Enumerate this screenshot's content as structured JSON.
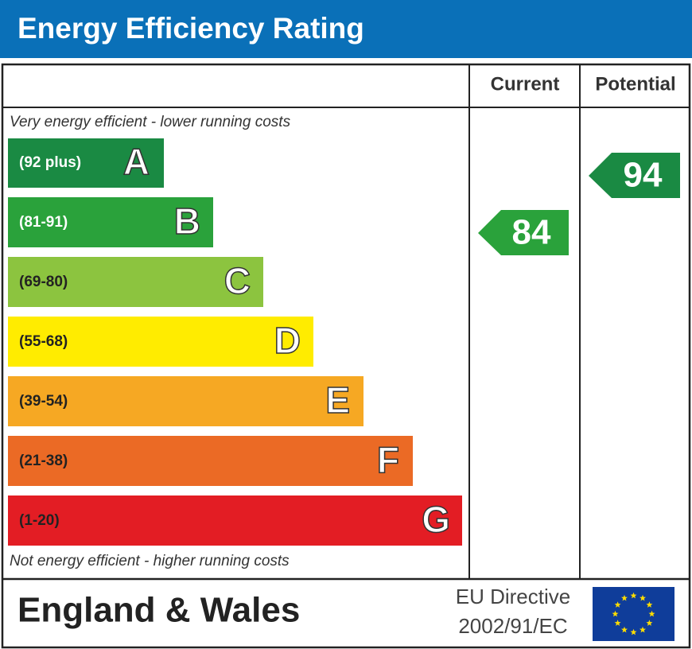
{
  "title": "Energy Efficiency Rating",
  "columns": {
    "current": "Current",
    "potential": "Potential"
  },
  "top_note": "Very energy efficient - lower running costs",
  "bottom_note": "Not energy efficient - higher running costs",
  "bands": [
    {
      "range": "(92 plus)",
      "letter": "A"
    },
    {
      "range": "(81-91)",
      "letter": "B"
    },
    {
      "range": "(69-80)",
      "letter": "C"
    },
    {
      "range": "(55-68)",
      "letter": "D"
    },
    {
      "range": "(39-54)",
      "letter": "E"
    },
    {
      "range": "(21-38)",
      "letter": "F"
    },
    {
      "range": "(1-20)",
      "letter": "G"
    }
  ],
  "current": 84,
  "potential": 94,
  "footer": {
    "region": "England & Wales",
    "directive": [
      "EU Directive",
      "2002/91/EC"
    ]
  }
}
